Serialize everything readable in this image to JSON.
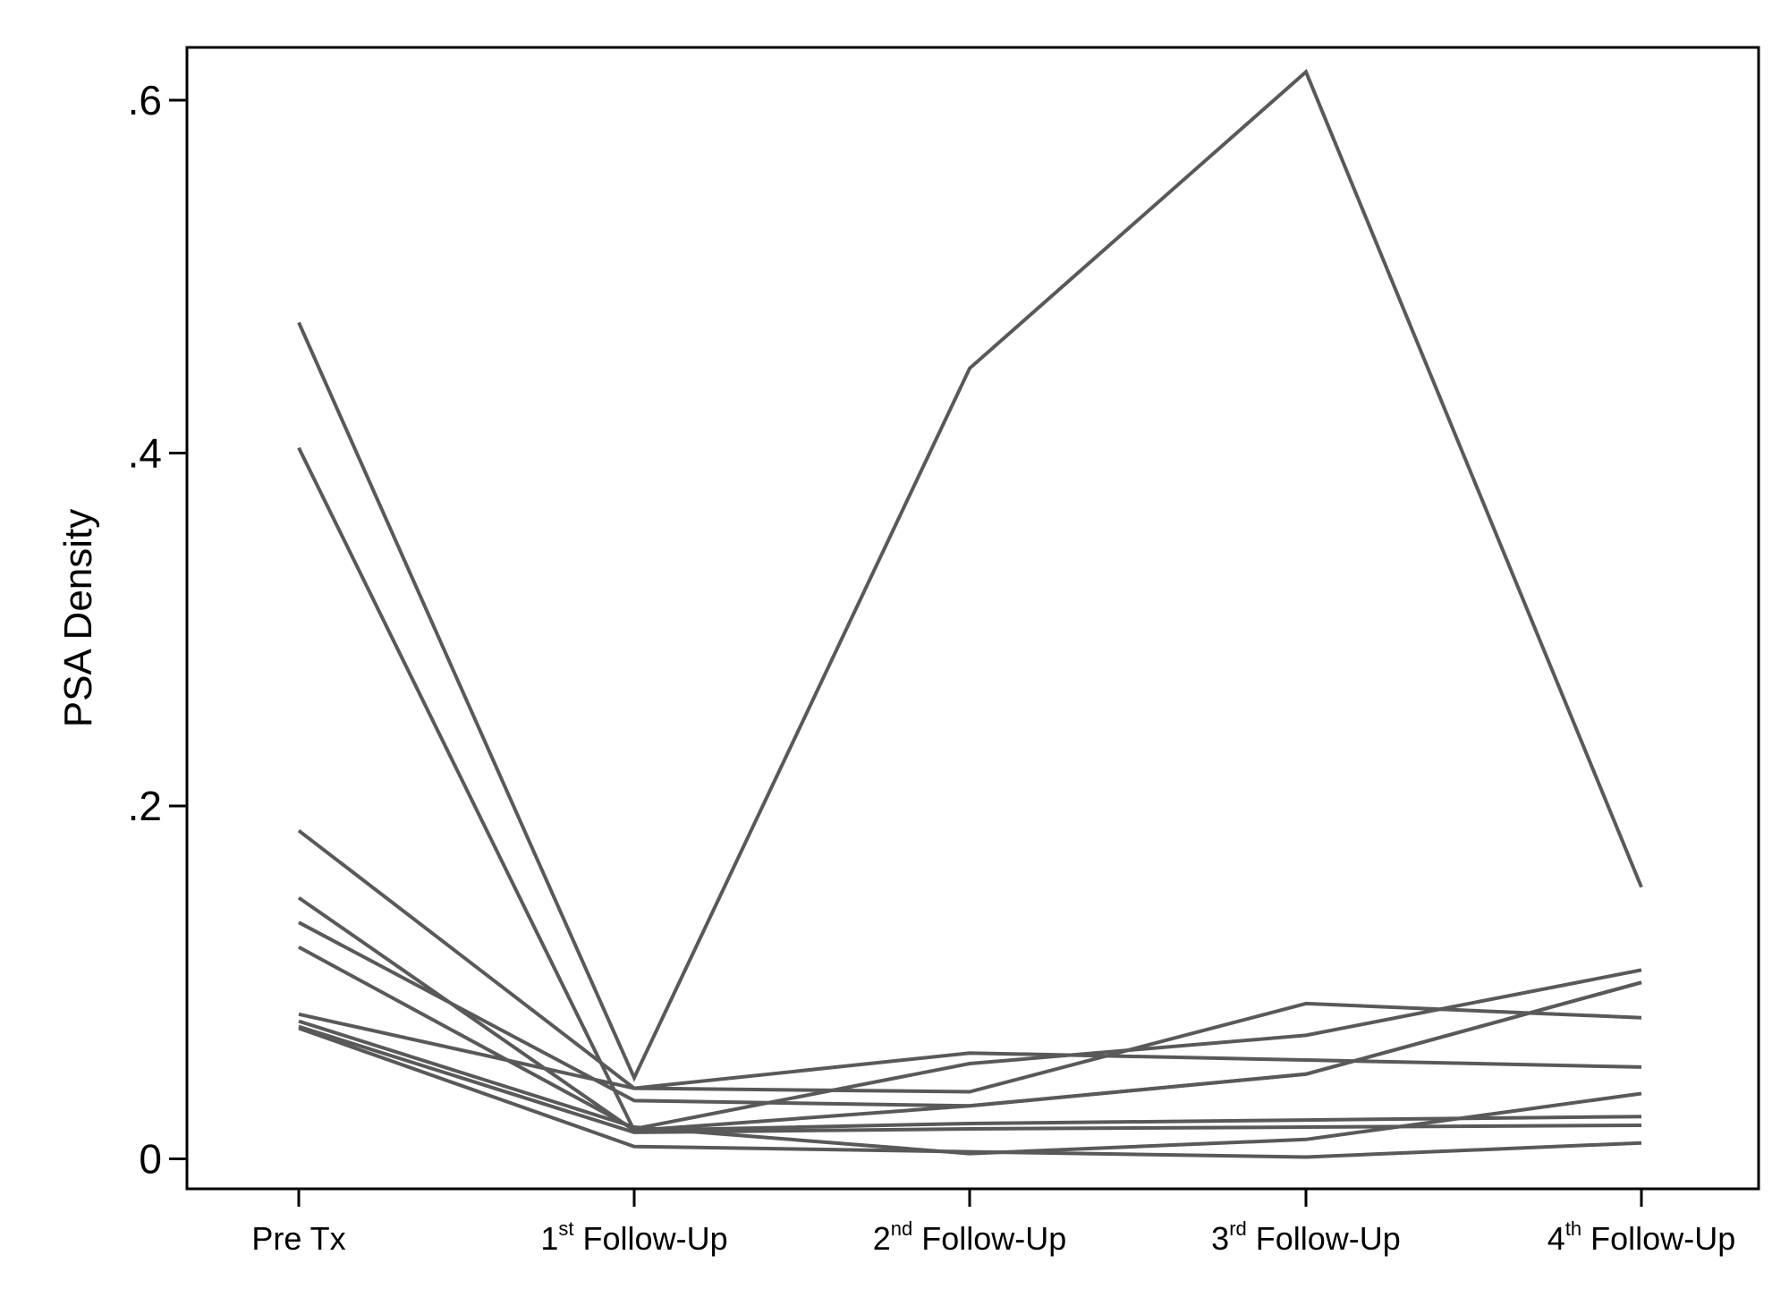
{
  "chart_data": {
    "type": "line",
    "ylabel": "PSA Density",
    "xlabel": "",
    "title": "",
    "ylim": [
      -0.016,
      0.63
    ],
    "yticks": [
      {
        "value": 0,
        "label": "0"
      },
      {
        "value": 0.2,
        "label": ".2"
      },
      {
        "value": 0.4,
        "label": ".4"
      },
      {
        "value": 0.6,
        "label": ".6"
      }
    ],
    "categories": [
      {
        "label": "Pre Tx",
        "prefix": "Pre Tx",
        "sup": "",
        "suffix": ""
      },
      {
        "label": "1st Follow-Up",
        "prefix": "1",
        "sup": "st",
        "suffix": " Follow-Up"
      },
      {
        "label": "2nd Follow-Up",
        "prefix": "2",
        "sup": "nd",
        "suffix": " Follow-Up"
      },
      {
        "label": "3rd Follow-Up",
        "prefix": "3",
        "sup": "rd",
        "suffix": " Follow-Up"
      },
      {
        "label": "4th Follow-Up",
        "prefix": "4",
        "sup": "th",
        "suffix": " Follow-Up"
      }
    ],
    "grid": false,
    "line_color": "#595959",
    "series": [
      {
        "values": [
          0.474,
          0.046,
          0.448,
          0.616,
          0.154
        ]
      },
      {
        "values": [
          0.403,
          0.016,
          0.02,
          0.022,
          0.024
        ]
      },
      {
        "values": [
          0.186,
          0.04,
          0.038,
          0.088,
          0.08
        ]
      },
      {
        "values": [
          0.148,
          0.016,
          0.03,
          0.048,
          0.1
        ]
      },
      {
        "values": [
          0.134,
          0.033,
          0.03,
          0.048,
          0.1
        ]
      },
      {
        "values": [
          0.12,
          0.017,
          0.054,
          0.07,
          0.107
        ]
      },
      {
        "values": [
          0.082,
          0.04,
          0.06,
          0.056,
          0.052
        ]
      },
      {
        "values": [
          0.078,
          0.018,
          0.003,
          0.011,
          0.037
        ]
      },
      {
        "values": [
          0.074,
          0.007,
          0.004,
          0.001,
          0.009
        ]
      },
      {
        "values": [
          0.075,
          0.015,
          0.017,
          0.018,
          0.019
        ]
      }
    ]
  }
}
